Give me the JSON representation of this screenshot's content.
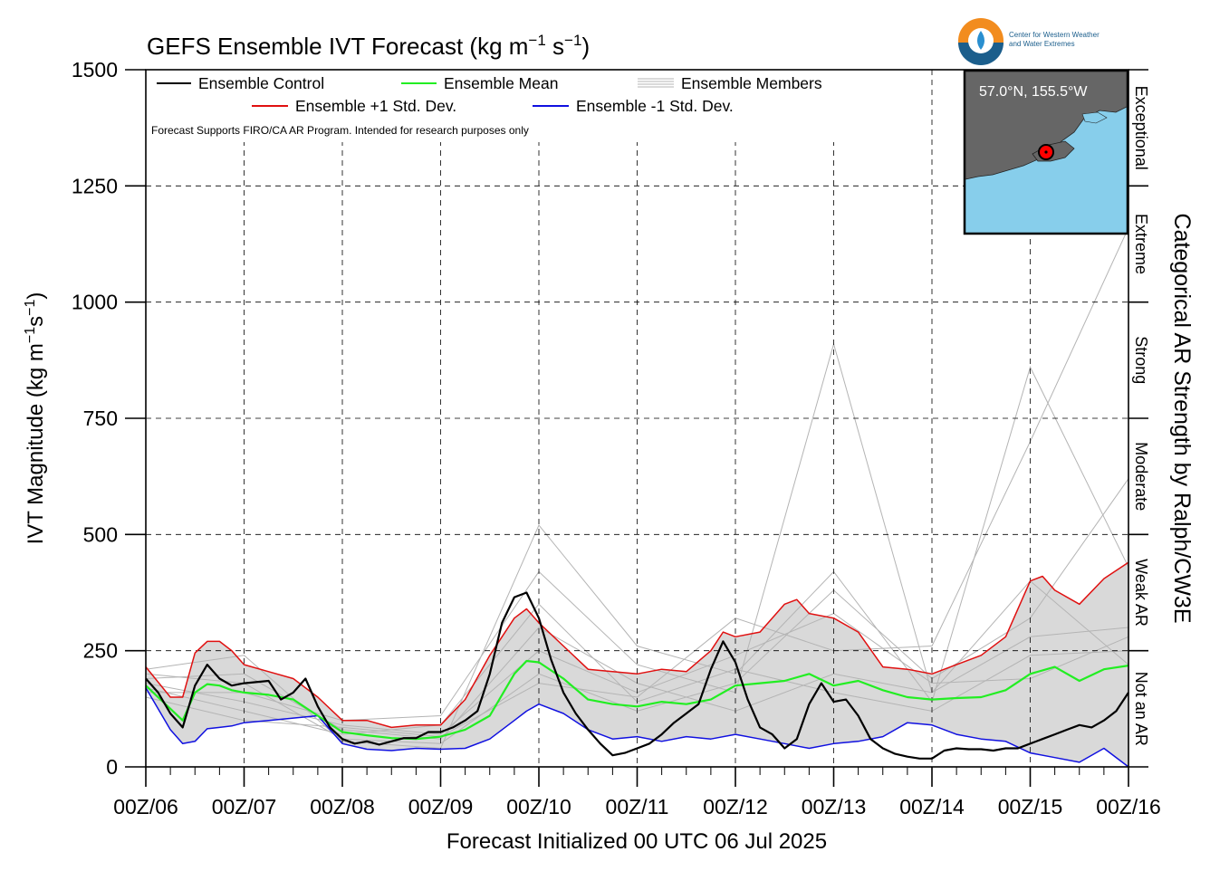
{
  "chart_data": {
    "type": "line",
    "title": "GEFS Ensemble IVT Forecast (kg m",
    "title_sup1": "−1",
    "title_mid": " s",
    "title_sup2": "−1",
    "title_end": ")",
    "xlabel": "Forecast Initialized 00 UTC 06 Jul 2025",
    "ylabel_main": "IVT Magnitude (kg m",
    "ylabel_sup1": "−1",
    "ylabel_mid": "s",
    "ylabel_sup2": "−1",
    "ylabel_end": ")",
    "right_axis_title": "Categorical AR Strength by Ralph/CW3E",
    "ylim": [
      0,
      1500
    ],
    "xlim": [
      0,
      10
    ],
    "x_unit_note": "days since 00Z/06",
    "y_ticks": [
      0,
      250,
      500,
      750,
      1000,
      1250,
      1500
    ],
    "x_tick_labels": [
      "00Z/06",
      "00Z/07",
      "00Z/08",
      "00Z/09",
      "00Z/10",
      "00Z/11",
      "00Z/12",
      "00Z/13",
      "00Z/14",
      "00Z/15",
      "00Z/16"
    ],
    "categories_right": [
      {
        "label": "Not an AR",
        "range": [
          0,
          250
        ]
      },
      {
        "label": "Weak AR",
        "range": [
          250,
          500
        ]
      },
      {
        "label": "Moderate",
        "range": [
          500,
          750
        ]
      },
      {
        "label": "Strong",
        "range": [
          750,
          1000
        ]
      },
      {
        "label": "Extreme",
        "range": [
          1000,
          1250
        ]
      },
      {
        "label": "Exceptional",
        "range": [
          1250,
          1500
        ]
      }
    ],
    "grid": "dashed",
    "legend_position": "top-left",
    "legend": {
      "control": "Ensemble Control",
      "mean": "Ensemble Mean",
      "members": "Ensemble Members",
      "plus_std": "Ensemble +1 Std. Dev.",
      "minus_std": "Ensemble -1 Std. Dev."
    },
    "note": "Forecast Supports FIRO/CA AR Program. Intended for research purposes only",
    "colors": {
      "control": "#000000",
      "mean": "#22ee22",
      "plus_std": "#e01010",
      "minus_std": "#1010e0",
      "members": "#b4b4b4",
      "band": "#d9d9d9"
    },
    "series": [
      {
        "name": "Ensemble Control",
        "x": [
          0,
          0.125,
          0.25,
          0.375,
          0.5,
          0.625,
          0.75,
          0.875,
          1,
          1.25,
          1.375,
          1.5,
          1.625,
          1.75,
          1.875,
          2,
          2.125,
          2.25,
          2.375,
          2.5,
          2.625,
          2.75,
          2.875,
          3,
          3.125,
          3.25,
          3.375,
          3.5,
          3.625,
          3.75,
          3.875,
          4,
          4.125,
          4.25,
          4.375,
          4.5,
          4.625,
          4.75,
          4.875,
          5,
          5.125,
          5.25,
          5.375,
          5.5,
          5.625,
          5.75,
          5.875,
          6,
          6.125,
          6.25,
          6.375,
          6.5,
          6.625,
          6.75,
          6.875,
          7,
          7.125,
          7.25,
          7.375,
          7.5,
          7.625,
          7.75,
          7.875,
          8,
          8.125,
          8.25,
          8.375,
          8.5,
          8.625,
          8.75,
          8.875,
          9,
          9.125,
          9.25,
          9.375,
          9.5,
          9.625,
          9.75,
          9.875,
          10
        ],
        "values": [
          190,
          160,
          115,
          85,
          175,
          220,
          190,
          175,
          180,
          185,
          145,
          160,
          190,
          130,
          85,
          60,
          50,
          55,
          48,
          55,
          62,
          62,
          75,
          75,
          85,
          100,
          120,
          200,
          310,
          365,
          375,
          320,
          230,
          160,
          115,
          80,
          50,
          25,
          30,
          40,
          50,
          70,
          95,
          115,
          135,
          210,
          270,
          225,
          145,
          85,
          70,
          40,
          60,
          135,
          180,
          140,
          145,
          110,
          60,
          40,
          28,
          22,
          18,
          18,
          35,
          40,
          38,
          38,
          35,
          40,
          40,
          50,
          60,
          70,
          80,
          90,
          85,
          100,
          120,
          160
        ]
      },
      {
        "name": "Ensemble Mean",
        "x": [
          0,
          0.25,
          0.375,
          0.5,
          0.625,
          0.75,
          0.875,
          1,
          1.25,
          1.5,
          1.75,
          2,
          2.25,
          2.5,
          2.75,
          3,
          3.25,
          3.5,
          3.75,
          3.875,
          4,
          4.25,
          4.5,
          4.75,
          5,
          5.25,
          5.5,
          5.75,
          6,
          6.25,
          6.5,
          6.75,
          7,
          7.25,
          7.5,
          7.75,
          8,
          8.25,
          8.5,
          8.75,
          9,
          9.25,
          9.5,
          9.75,
          10
        ],
        "values": [
          175,
          125,
          100,
          160,
          178,
          175,
          165,
          160,
          155,
          145,
          110,
          75,
          68,
          62,
          60,
          65,
          80,
          110,
          200,
          228,
          225,
          190,
          145,
          135,
          130,
          140,
          135,
          145,
          175,
          180,
          185,
          200,
          175,
          185,
          165,
          150,
          145,
          148,
          150,
          165,
          200,
          215,
          185,
          210,
          218
        ]
      },
      {
        "name": "Ensemble +1 Std. Dev.",
        "x": [
          0,
          0.25,
          0.375,
          0.5,
          0.625,
          0.75,
          0.875,
          1,
          1.25,
          1.5,
          1.75,
          2,
          2.25,
          2.5,
          2.75,
          3,
          3.25,
          3.5,
          3.75,
          3.875,
          4,
          4.25,
          4.5,
          4.75,
          5,
          5.25,
          5.5,
          5.75,
          5.875,
          6,
          6.25,
          6.5,
          6.625,
          6.75,
          7,
          7.25,
          7.5,
          7.75,
          8,
          8.25,
          8.5,
          8.75,
          9,
          9.125,
          9.25,
          9.5,
          9.75,
          10
        ],
        "values": [
          215,
          150,
          150,
          245,
          270,
          270,
          250,
          220,
          205,
          190,
          150,
          100,
          100,
          85,
          90,
          90,
          145,
          240,
          320,
          340,
          310,
          260,
          210,
          205,
          200,
          210,
          205,
          250,
          290,
          280,
          290,
          350,
          360,
          330,
          320,
          290,
          215,
          210,
          200,
          220,
          240,
          280,
          400,
          410,
          380,
          350,
          405,
          440
        ]
      },
      {
        "name": "Ensemble -1 Std. Dev.",
        "x": [
          0,
          0.25,
          0.375,
          0.5,
          0.625,
          0.75,
          0.875,
          1,
          1.25,
          1.5,
          1.75,
          2,
          2.25,
          2.5,
          2.75,
          3,
          3.25,
          3.5,
          3.75,
          3.875,
          4,
          4.25,
          4.5,
          4.75,
          5,
          5.25,
          5.5,
          5.75,
          6,
          6.25,
          6.5,
          6.75,
          7,
          7.25,
          7.5,
          7.75,
          8,
          8.25,
          8.5,
          8.75,
          9,
          9.25,
          9.5,
          9.75,
          10
        ],
        "values": [
          170,
          80,
          50,
          55,
          82,
          85,
          88,
          95,
          100,
          105,
          110,
          50,
          38,
          35,
          40,
          38,
          40,
          60,
          100,
          120,
          135,
          115,
          80,
          60,
          65,
          55,
          65,
          60,
          70,
          60,
          50,
          40,
          50,
          55,
          65,
          95,
          90,
          70,
          60,
          55,
          30,
          20,
          10,
          40,
          0
        ]
      }
    ],
    "members_note": "thin gray spaghetti lines for individual ensemble members",
    "members": [
      {
        "x": [
          0,
          1,
          2,
          3,
          4,
          5,
          6,
          7,
          8,
          9,
          10
        ],
        "values": [
          180,
          140,
          90,
          70,
          250,
          160,
          240,
          330,
          180,
          190,
          280
        ]
      },
      {
        "x": [
          0,
          1,
          2,
          3,
          4,
          5,
          6,
          7,
          8,
          9,
          10
        ],
        "values": [
          190,
          200,
          80,
          60,
          300,
          180,
          120,
          200,
          160,
          280,
          300
        ]
      },
      {
        "x": [
          0,
          1,
          2,
          3,
          4,
          5,
          6,
          7,
          8,
          9,
          10
        ],
        "values": [
          170,
          120,
          70,
          90,
          350,
          140,
          210,
          160,
          120,
          240,
          250
        ]
      },
      {
        "x": [
          0,
          1,
          2,
          3,
          4,
          5,
          6,
          7,
          8,
          9,
          10
        ],
        "values": [
          200,
          180,
          60,
          50,
          200,
          120,
          180,
          380,
          190,
          320,
          620
        ]
      },
      {
        "x": [
          0,
          1,
          2,
          3,
          4,
          5,
          6,
          7,
          8,
          9,
          10
        ],
        "values": [
          160,
          160,
          100,
          110,
          420,
          220,
          160,
          910,
          160,
          400,
          220
        ]
      },
      {
        "x": [
          0,
          1,
          2,
          3,
          4,
          5,
          6,
          7,
          8,
          9,
          10
        ],
        "values": [
          210,
          240,
          55,
          40,
          520,
          260,
          200,
          420,
          140,
          860,
          430
        ]
      },
      {
        "x": [
          0,
          1,
          2,
          3,
          4,
          5,
          6,
          7,
          8,
          9,
          10
        ],
        "values": [
          150,
          100,
          85,
          65,
          180,
          150,
          320,
          250,
          260,
          700,
          1160
        ]
      }
    ],
    "inset": {
      "label": "57.0°N, 155.5°W",
      "colors": {
        "ocean": "#87ceeb",
        "land": "#666666",
        "marker": "#ff0000"
      }
    },
    "logo": {
      "line1": "Center for Western Weather",
      "line2": "and Water Extremes"
    }
  }
}
